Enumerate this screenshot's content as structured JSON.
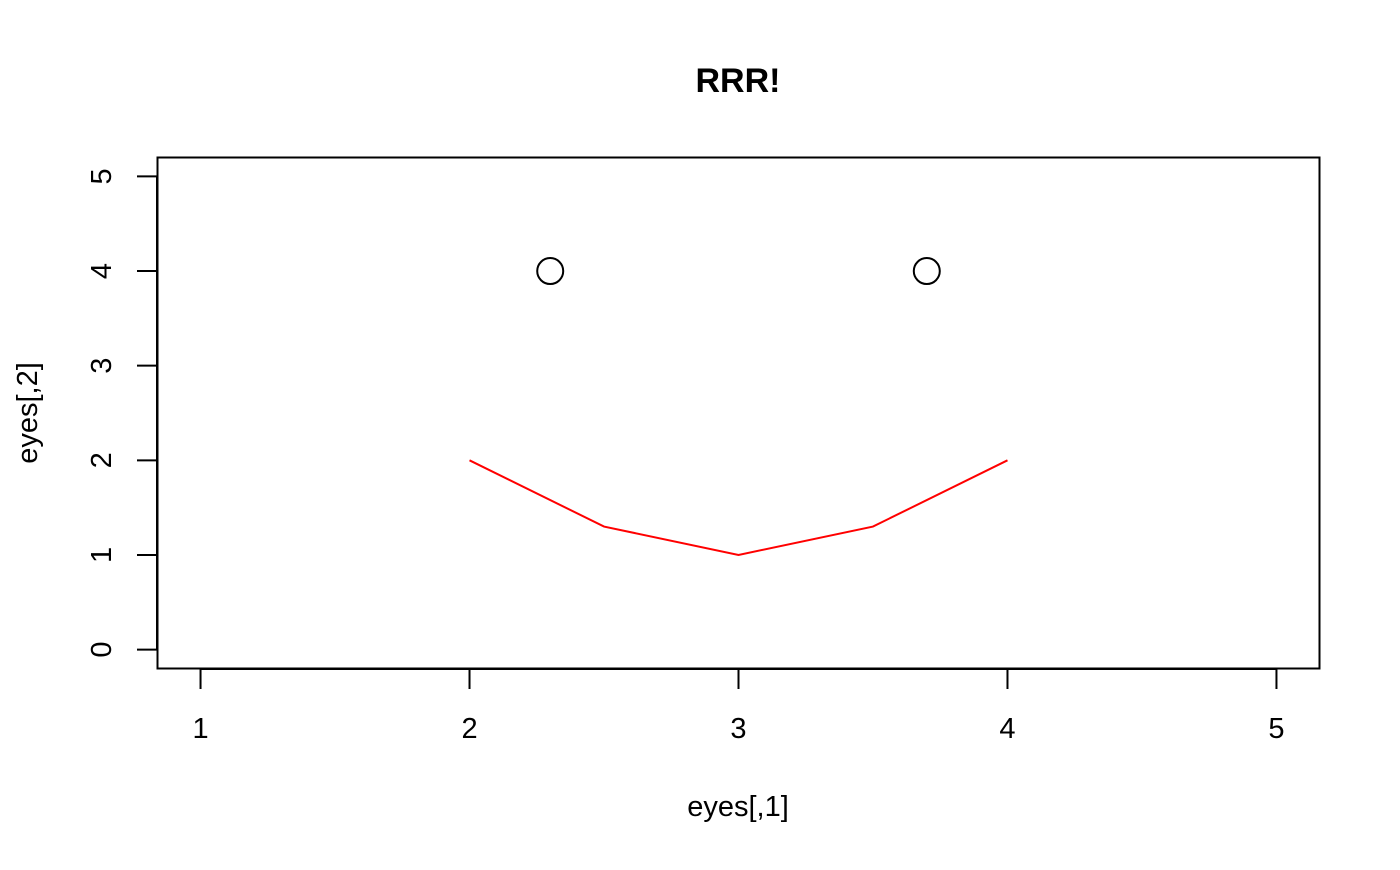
{
  "chart_data": {
    "type": "scatter",
    "title": "RRR!",
    "xlabel": "eyes[,1]",
    "ylabel": "eyes[,2]",
    "xlim": [
      0.84,
      5.16
    ],
    "ylim": [
      -0.2,
      5.2
    ],
    "x_ticks": [
      1,
      2,
      3,
      4,
      5
    ],
    "y_ticks": [
      0,
      1,
      2,
      3,
      4,
      5
    ],
    "x_tick_labels": [
      "1",
      "2",
      "3",
      "4",
      "5"
    ],
    "y_tick_labels": [
      "0",
      "1",
      "2",
      "3",
      "4",
      "5"
    ],
    "grid": false,
    "legend": "none",
    "series": [
      {
        "kind": "points",
        "marker": "open-circle",
        "color": "#000000",
        "x": [
          2.3,
          3.7
        ],
        "y": [
          4,
          4
        ]
      },
      {
        "kind": "line",
        "color": "#ff0000",
        "x": [
          2,
          2.5,
          3,
          3.5,
          4
        ],
        "y": [
          2,
          1.3,
          1,
          1.3,
          2
        ]
      }
    ]
  }
}
